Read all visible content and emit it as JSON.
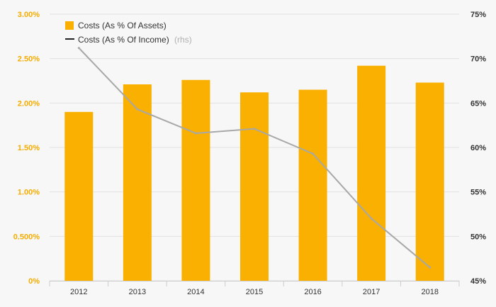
{
  "chart_data": {
    "type": "bar",
    "categories": [
      "2012",
      "2013",
      "2014",
      "2015",
      "2016",
      "2017",
      "2018"
    ],
    "series": [
      {
        "name": "Costs (As % Of Assets)",
        "type": "bar",
        "axis": "left",
        "color": "#f9b000",
        "values": [
          1.9,
          2.21,
          2.26,
          2.12,
          2.15,
          2.42,
          2.23
        ]
      },
      {
        "name": "Costs (As % Of Income)",
        "name_suffix": "(rhs)",
        "type": "line",
        "axis": "right",
        "color": "#a8a8a8",
        "values": [
          71.2,
          64.3,
          61.6,
          62.1,
          59.3,
          52.0,
          46.5
        ]
      }
    ],
    "y_left": {
      "ylim": [
        0,
        3.0
      ],
      "ticks": [
        0,
        0.5,
        1.0,
        1.5,
        2.0,
        2.5,
        3.0
      ],
      "tick_labels": [
        "0%",
        "0.500%",
        "1.00%",
        "1.50%",
        "2.00%",
        "2.50%",
        "3.00%"
      ],
      "color": "#f5ac00"
    },
    "y_right": {
      "ylim": [
        45,
        75
      ],
      "ticks": [
        45,
        50,
        55,
        60,
        65,
        70,
        75
      ],
      "tick_labels": [
        "45%",
        "50%",
        "55%",
        "60%",
        "65%",
        "70%",
        "75%"
      ],
      "color": "#333333"
    },
    "grid": true,
    "legend_position": "top-left",
    "legend_marker_color_line": "#222222"
  }
}
